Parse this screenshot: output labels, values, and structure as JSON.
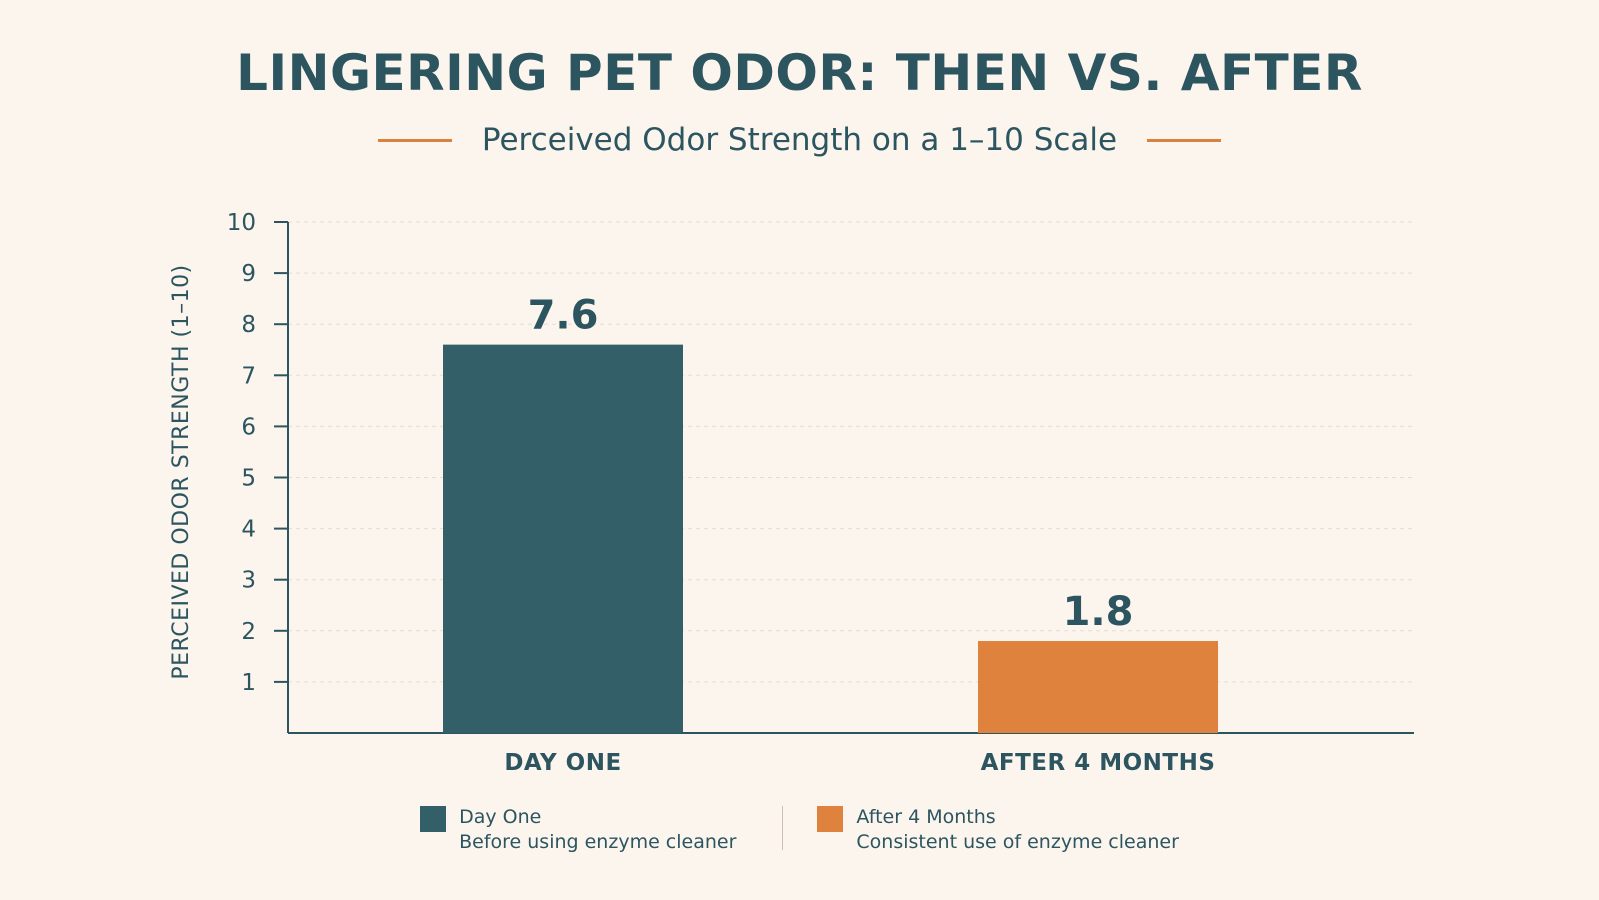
{
  "chart_data": {
    "type": "bar",
    "title": "LINGERING PET ODOR: THEN VS. AFTER",
    "subtitle": "Perceived Odor Strength on a 1–10 Scale",
    "ylabel": "PERCEIVED ODOR STRENGTH (1–10)",
    "xlabel": "",
    "ylim": [
      0,
      10
    ],
    "yticks": [
      "1",
      "2",
      "3",
      "4",
      "5",
      "6",
      "7",
      "8",
      "9",
      "10"
    ],
    "grid": true,
    "categories": [
      "DAY ONE",
      "AFTER 4 MONTHS"
    ],
    "values": [
      7.6,
      1.8
    ],
    "value_labels": [
      "7.6",
      "1.8"
    ],
    "colors": [
      "#335f69",
      "#df823e"
    ],
    "legend_position": "bottom-center",
    "legend": [
      {
        "name": "Day One",
        "description": "Before using enzyme cleaner",
        "color": "#335f69"
      },
      {
        "name": "After 4 Months",
        "description": "Consistent use of enzyme cleaner",
        "color": "#df823e"
      }
    ]
  }
}
